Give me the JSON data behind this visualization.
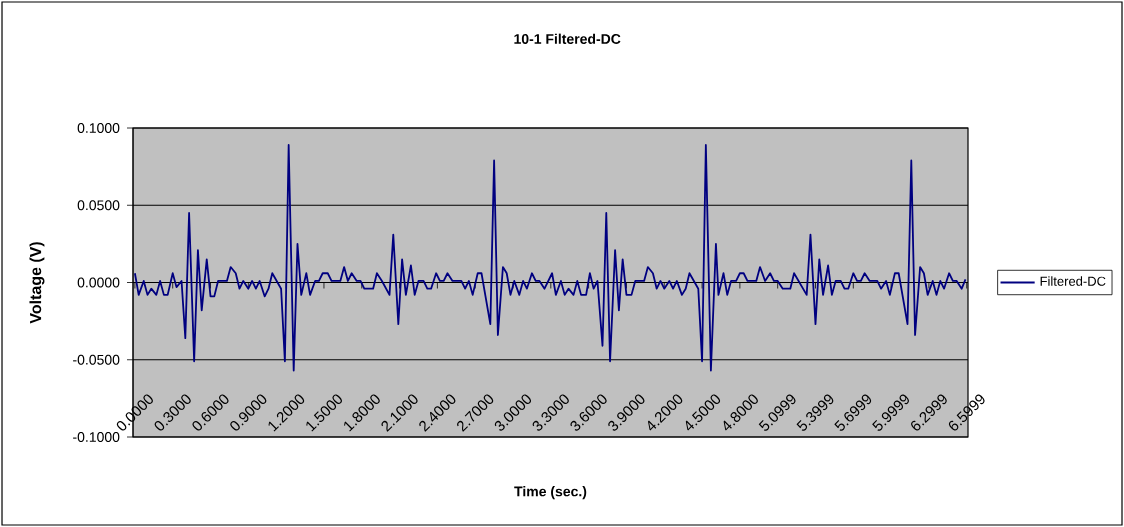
{
  "chart_data": {
    "type": "line",
    "title": "10-1 Filtered-DC",
    "xlabel": "Time (sec.)",
    "ylabel": "Voltage (V)",
    "series": [
      {
        "name": "Filtered-DC",
        "color": "#000080",
        "x": [
          0,
          0.03,
          0.07,
          0.1,
          0.13,
          0.17,
          0.2,
          0.23,
          0.26,
          0.3,
          0.33,
          0.37,
          0.4,
          0.43,
          0.47,
          0.5,
          0.53,
          0.57,
          0.6,
          0.63,
          0.66,
          0.73,
          0.76,
          0.8,
          0.83,
          0.86,
          0.9,
          0.93,
          0.96,
          0.99,
          1.03,
          1.06,
          1.09,
          1.16,
          1.19,
          1.22,
          1.26,
          1.29,
          1.32,
          1.36,
          1.39,
          1.43,
          1.46,
          1.49,
          1.53,
          1.56,
          1.63,
          1.66,
          1.69,
          1.72,
          1.76,
          1.79,
          1.82,
          1.89,
          1.92,
          1.96,
          2.02,
          2.05,
          2.09,
          2.12,
          2.15,
          2.19,
          2.22,
          2.25,
          2.29,
          2.32,
          2.35,
          2.39,
          2.42,
          2.45,
          2.48,
          2.52,
          2.59,
          2.62,
          2.65,
          2.68,
          2.72,
          2.75,
          2.82,
          2.85,
          2.88,
          2.92,
          2.95,
          2.98,
          3.01,
          3.05,
          3.08,
          3.11,
          3.15,
          3.18,
          3.21,
          3.25,
          3.31,
          3.34,
          3.38,
          3.41,
          3.44,
          3.48,
          3.51,
          3.54,
          3.58,
          3.61,
          3.64,
          3.67,
          3.71,
          3.74,
          3.77,
          3.81,
          3.84,
          3.87,
          3.9,
          3.94,
          3.97,
          4.04,
          4.07,
          4.11,
          4.14,
          4.17,
          4.2,
          4.24,
          4.27,
          4.3,
          4.34,
          4.37,
          4.4,
          4.47,
          4.5,
          4.53,
          4.57,
          4.61,
          4.63,
          4.67,
          4.7,
          4.73,
          4.77,
          4.8,
          4.83,
          4.86,
          4.93,
          4.96,
          5.0,
          5.04,
          5.07,
          5.1,
          5.14,
          5.2,
          5.23,
          5.33,
          5.36,
          5.4,
          5.43,
          5.46,
          5.5,
          5.53,
          5.56,
          5.6,
          5.63,
          5.66,
          5.7,
          5.73,
          5.76,
          5.79,
          5.83,
          5.89,
          5.92,
          5.96,
          5.99,
          6.03,
          6.06,
          6.13,
          6.16,
          6.19,
          6.23,
          6.26,
          6.29,
          6.33,
          6.36,
          6.39,
          6.42,
          6.46,
          6.49,
          6.52,
          6.56,
          6.59
        ],
        "values": [
          0.006,
          -0.008,
          0.001,
          -0.008,
          -0.004,
          -0.008,
          0.001,
          -0.008,
          -0.008,
          0.006,
          -0.003,
          0.001,
          -0.036,
          0.045,
          -0.051,
          0.021,
          -0.018,
          0.015,
          -0.009,
          -0.009,
          0.001,
          0.001,
          0.01,
          0.006,
          -0.004,
          0.001,
          -0.004,
          0.001,
          -0.004,
          0.001,
          -0.009,
          -0.004,
          0.006,
          -0.004,
          -0.051,
          0.089,
          -0.057,
          0.025,
          -0.008,
          0.006,
          -0.008,
          0.001,
          0.001,
          0.006,
          0.006,
          0.001,
          0.001,
          0.01,
          0.001,
          0.006,
          0.001,
          0.001,
          -0.004,
          -0.004,
          0.006,
          0.001,
          -0.008,
          0.031,
          -0.027,
          0.015,
          -0.008,
          0.011,
          -0.008,
          0.001,
          0.001,
          -0.004,
          -0.004,
          0.006,
          0.001,
          0.001,
          0.006,
          0.001,
          0.001,
          -0.004,
          0.001,
          -0.008,
          0.006,
          0.006,
          -0.027,
          0.079,
          -0.034,
          0.01,
          0.006,
          -0.008,
          0.001,
          -0.008,
          0.001,
          -0.004,
          0.006,
          0.001,
          0.001,
          -0.004,
          0.006,
          -0.008,
          0.001,
          -0.008,
          -0.004,
          -0.008,
          0.001,
          -0.008,
          -0.008,
          0.006,
          -0.004,
          0.001,
          -0.041,
          0.045,
          -0.051,
          0.021,
          -0.018,
          0.015,
          -0.008,
          -0.008,
          0.001,
          0.001,
          0.01,
          0.006,
          -0.004,
          0.001,
          -0.004,
          0.001,
          -0.004,
          0.001,
          -0.008,
          -0.004,
          0.006,
          -0.004,
          -0.051,
          0.089,
          -0.057,
          0.025,
          -0.008,
          0.006,
          -0.008,
          0.001,
          0.001,
          0.006,
          0.006,
          0.001,
          0.001,
          0.01,
          0.001,
          0.006,
          0.001,
          0.001,
          -0.004,
          -0.004,
          0.006,
          -0.008,
          0.031,
          -0.027,
          0.015,
          -0.008,
          0.011,
          -0.008,
          0.001,
          0.001,
          -0.004,
          -0.004,
          0.006,
          0.001,
          0.001,
          0.006,
          0.001,
          0.001,
          -0.004,
          0.001,
          -0.008,
          0.006,
          0.006,
          -0.027,
          0.079,
          -0.034,
          0.01,
          0.006,
          -0.008,
          0.001,
          -0.008,
          0.001,
          -0.004,
          0.006,
          0.001,
          0.001,
          -0.004,
          0.002
        ]
      }
    ],
    "xlim": [
      -0.015,
      6.61
    ],
    "xticks": [
      {
        "value": 0,
        "label": "0.0000"
      },
      {
        "value": 0.3,
        "label": "0.3000"
      },
      {
        "value": 0.6,
        "label": "0.6000"
      },
      {
        "value": 0.9,
        "label": "0.9000"
      },
      {
        "value": 1.2,
        "label": "1.2000"
      },
      {
        "value": 1.5,
        "label": "1.5000"
      },
      {
        "value": 1.8,
        "label": "1.8000"
      },
      {
        "value": 2.1,
        "label": "2.1000"
      },
      {
        "value": 2.4,
        "label": "2.4000"
      },
      {
        "value": 2.7,
        "label": "2.7000"
      },
      {
        "value": 3.0,
        "label": "3.0000"
      },
      {
        "value": 3.3,
        "label": "3.3000"
      },
      {
        "value": 3.6,
        "label": "3.6000"
      },
      {
        "value": 3.9,
        "label": "3.9000"
      },
      {
        "value": 4.2,
        "label": "4.2000"
      },
      {
        "value": 4.5,
        "label": "4.5000"
      },
      {
        "value": 4.8,
        "label": "4.8000"
      },
      {
        "value": 5.0999,
        "label": "5.0999"
      },
      {
        "value": 5.3999,
        "label": "5.3999"
      },
      {
        "value": 5.6999,
        "label": "5.6999"
      },
      {
        "value": 5.9999,
        "label": "5.9999"
      },
      {
        "value": 6.2999,
        "label": "6.2999"
      },
      {
        "value": 6.5999,
        "label": "6.5999"
      }
    ],
    "ylim": [
      -0.1,
      0.1
    ],
    "yticks": [
      {
        "value": -0.1,
        "label": "-0.1000"
      },
      {
        "value": -0.05,
        "label": "-0.0500"
      },
      {
        "value": 0,
        "label": "0.0000"
      },
      {
        "value": 0.05,
        "label": "0.0500"
      },
      {
        "value": 0.1,
        "label": "0.1000"
      }
    ],
    "grid": "y",
    "legend": "right",
    "marker": "none",
    "line_style": "solid"
  }
}
